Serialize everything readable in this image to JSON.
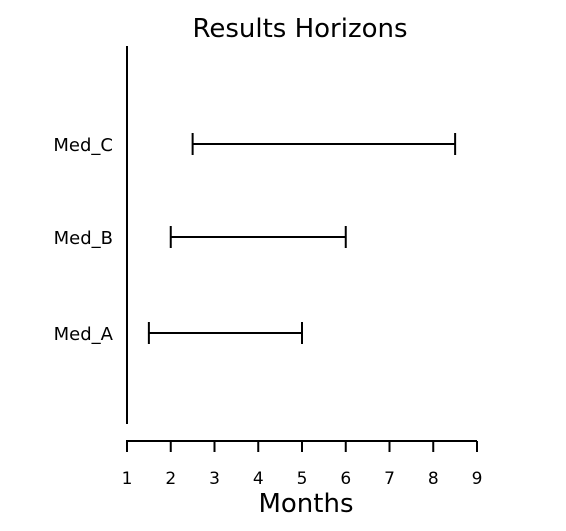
{
  "chart_data": {
    "type": "range",
    "title": "Results Horizons",
    "xlabel": "Months",
    "ylabel": "",
    "xlim": [
      1,
      9
    ],
    "xticks": [
      1,
      2,
      3,
      4,
      5,
      6,
      7,
      8,
      9
    ],
    "grid": false,
    "categories": [
      "Med_A",
      "Med_B",
      "Med_C"
    ],
    "ranges": [
      {
        "category": "Med_A",
        "start": 1.5,
        "end": 5.0
      },
      {
        "category": "Med_B",
        "start": 2.0,
        "end": 6.0
      },
      {
        "category": "Med_C",
        "start": 2.5,
        "end": 8.5
      }
    ],
    "colors": {
      "line": "#000000"
    }
  }
}
